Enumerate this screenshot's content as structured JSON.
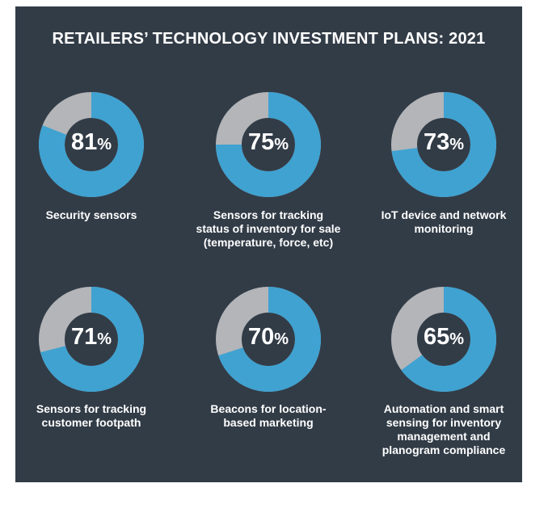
{
  "colors": {
    "background": "#323c47",
    "share": "#3fa2d1",
    "remainder": "#b3b5b9",
    "text": "#ffffff"
  },
  "title": "RETAILERS’ TECHNOLOGY INVESTMENT PLANS: 2021",
  "chart_data": {
    "type": "pie",
    "title": "RETAILERS’ TECHNOLOGY INVESTMENT PLANS: 2021",
    "unit": "%",
    "items": [
      {
        "label": [
          "Security sensors"
        ],
        "value": 81
      },
      {
        "label": [
          "Sensors for tracking",
          "status of inventory for sale",
          "(temperature, force, etc)"
        ],
        "value": 75
      },
      {
        "label": [
          "IoT device and network",
          "monitoring"
        ],
        "value": 73
      },
      {
        "label": [
          "Sensors for tracking",
          "customer footpath"
        ],
        "value": 71
      },
      {
        "label": [
          "Beacons for location-",
          "based marketing"
        ],
        "value": 70
      },
      {
        "label": [
          "Automation and smart",
          "sensing for inventory",
          "management and",
          "planogram compliance"
        ],
        "value": 65
      }
    ]
  }
}
